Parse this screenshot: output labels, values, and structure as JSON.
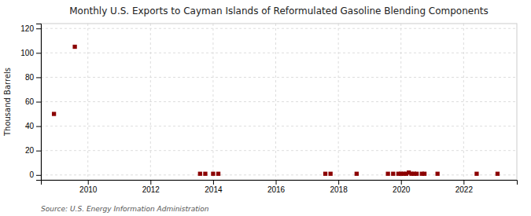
{
  "chart_data": {
    "type": "scatter",
    "title": "Monthly U.S. Exports to Cayman Islands of Reformulated Gasoline Blending Components",
    "ylabel": "Thousand Barrels",
    "source": "Source: U.S. Energy Information Administration",
    "color": "#8b0000",
    "marker": "square",
    "grid": true,
    "xlim": [
      2008.5,
      2023.7
    ],
    "xticks": [
      2010,
      2012,
      2014,
      2016,
      2018,
      2020,
      2022
    ],
    "ylim": [
      -4,
      124
    ],
    "yticks": [
      0,
      20,
      40,
      60,
      80,
      100,
      120
    ],
    "x": [
      2008.917,
      2009.583,
      2013.583,
      2013.75,
      2014.0,
      2014.167,
      2017.583,
      2017.75,
      2018.583,
      2019.583,
      2019.75,
      2019.917,
      2020.0,
      2020.083,
      2020.167,
      2020.25,
      2020.333,
      2020.417,
      2020.5,
      2020.667,
      2020.75,
      2021.167,
      2022.417,
      2023.083
    ],
    "values": [
      50,
      105,
      1,
      1,
      1,
      1,
      1,
      1,
      1,
      1,
      1,
      1,
      1,
      1,
      1,
      2,
      1,
      1,
      1,
      1,
      1,
      1,
      1,
      1
    ]
  }
}
